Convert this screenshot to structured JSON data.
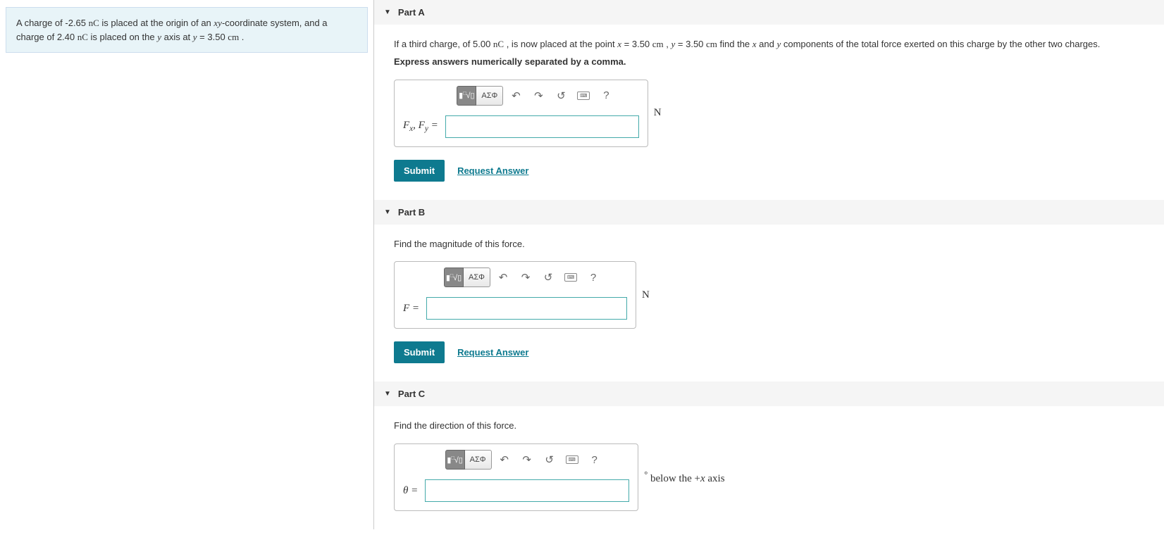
{
  "problem": {
    "text_pre": "A charge of -2.65 ",
    "unit1": "nC",
    "text_mid1": " is placed at the origin of an ",
    "xy": "xy",
    "text_mid2": "-coordinate system, and a charge of 2.40 ",
    "unit2": "nC",
    "text_mid3": " is placed on the ",
    "yvar": "y",
    "text_mid4": " axis at ",
    "eq1_lhs": "y",
    "eq1_rhs": " = 3.50 ",
    "unit3": "cm",
    "text_end": " ."
  },
  "partA": {
    "title": "Part A",
    "q_pre": "If a third charge, of 5.00 ",
    "q_unit": "nC",
    "q_mid1": " , is now placed at the point ",
    "xvar": "x",
    "q_eq1": " = 3.50 ",
    "q_u1": "cm",
    "q_mid2": " , ",
    "yvar": "y",
    "q_eq2": " = 3.50 ",
    "q_u2": "cm",
    "q_mid3": " find the ",
    "q_xv": "x",
    "q_mid4": " and ",
    "q_yv": "y",
    "q_end": " components of the total force exerted on this charge by the other two charges.",
    "instr": "Express answers numerically separated by a comma.",
    "label": "Fₓ, Fᵧ =",
    "label_F": "F",
    "label_x": "x",
    "label_sep": ", ",
    "label_F2": "F",
    "label_y": "y",
    "label_eq": " =",
    "unit": "N",
    "submit": "Submit",
    "request": "Request Answer",
    "input_width": 275
  },
  "partB": {
    "title": "Part B",
    "q": "Find the magnitude of this force.",
    "label_F": "F",
    "label_eq": " =",
    "unit": "N",
    "submit": "Submit",
    "request": "Request Answer",
    "input_width": 285
  },
  "partC": {
    "title": "Part C",
    "q": "Find the direction of this force.",
    "label_th": "θ",
    "label_eq": " =",
    "unit_deg": "°",
    "unit_post_pre": " below the ",
    "unit_post_plus": "+",
    "unit_post_x": "x",
    "unit_post_end": " axis",
    "input_width": 290
  },
  "toolbar": {
    "templates": "√",
    "greek": "ΑΣΦ",
    "help": "?"
  },
  "colors": {
    "problem_bg": "#e8f4f8",
    "accent": "#0e7a8f",
    "input_border": "#4aa"
  }
}
